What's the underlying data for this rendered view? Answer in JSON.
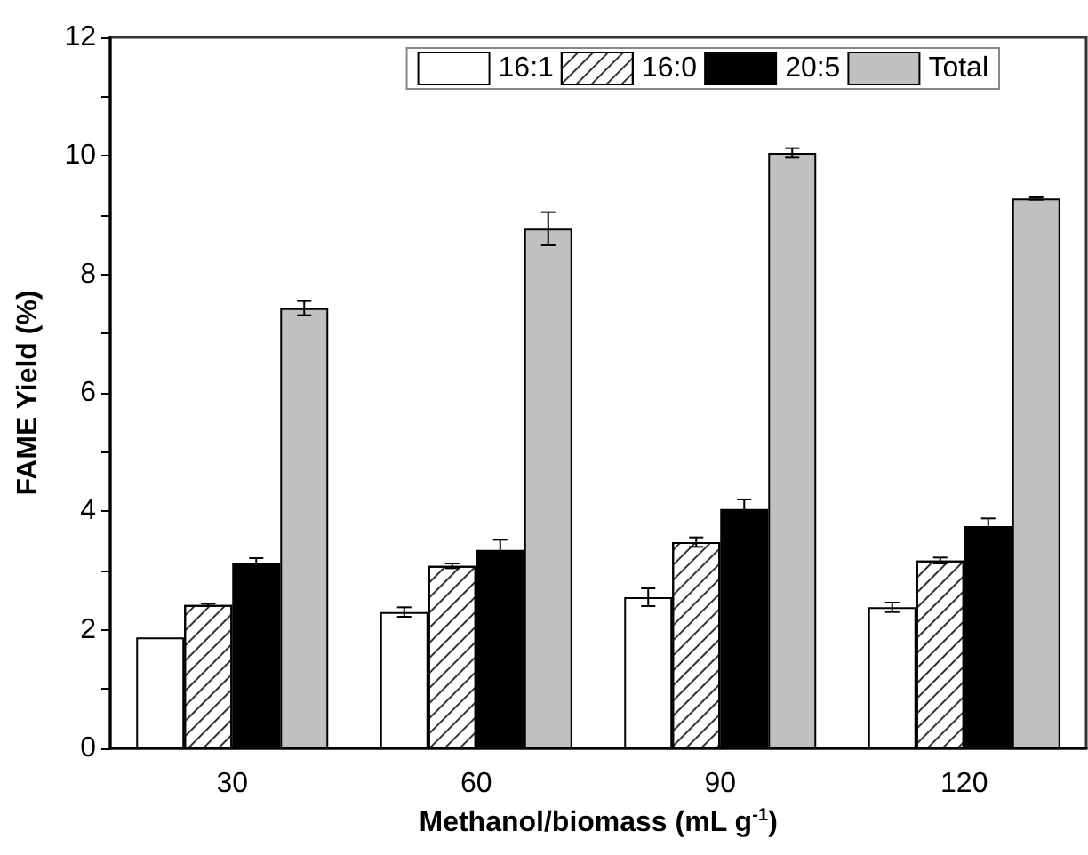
{
  "chart_data": {
    "type": "bar",
    "xlabel": "Methanol/biomass (mL g$^{-1}$)",
    "ylabel": "FAME Yield (%)",
    "categories": [
      "30",
      "60",
      "90",
      "120"
    ],
    "series": [
      {
        "name": "16:1",
        "color": "#ffffff",
        "values": [
          1.87,
          2.3,
          2.55,
          2.38
        ],
        "errors": [
          null,
          0.08,
          0.15,
          0.08
        ]
      },
      {
        "name": "16:0",
        "color": "#ffffff",
        "values": [
          2.42,
          3.08,
          3.48,
          3.17
        ],
        "errors": [
          0.02,
          0.04,
          0.08,
          0.05
        ]
      },
      {
        "name": "20:5",
        "color": "#000000",
        "values": [
          3.13,
          3.35,
          4.04,
          3.75
        ],
        "errors": [
          0.08,
          0.17,
          0.16,
          0.13
        ]
      },
      {
        "name": "Total",
        "color": "#c0c0c0",
        "values": [
          7.43,
          8.77,
          10.05,
          9.28
        ],
        "errors": [
          0.12,
          0.28,
          0.08,
          0.02
        ]
      }
    ],
    "ylim": [
      0,
      12
    ],
    "yticks": [
      0,
      2,
      4,
      6,
      8,
      10,
      12
    ],
    "grid": false,
    "legend": "top right"
  }
}
